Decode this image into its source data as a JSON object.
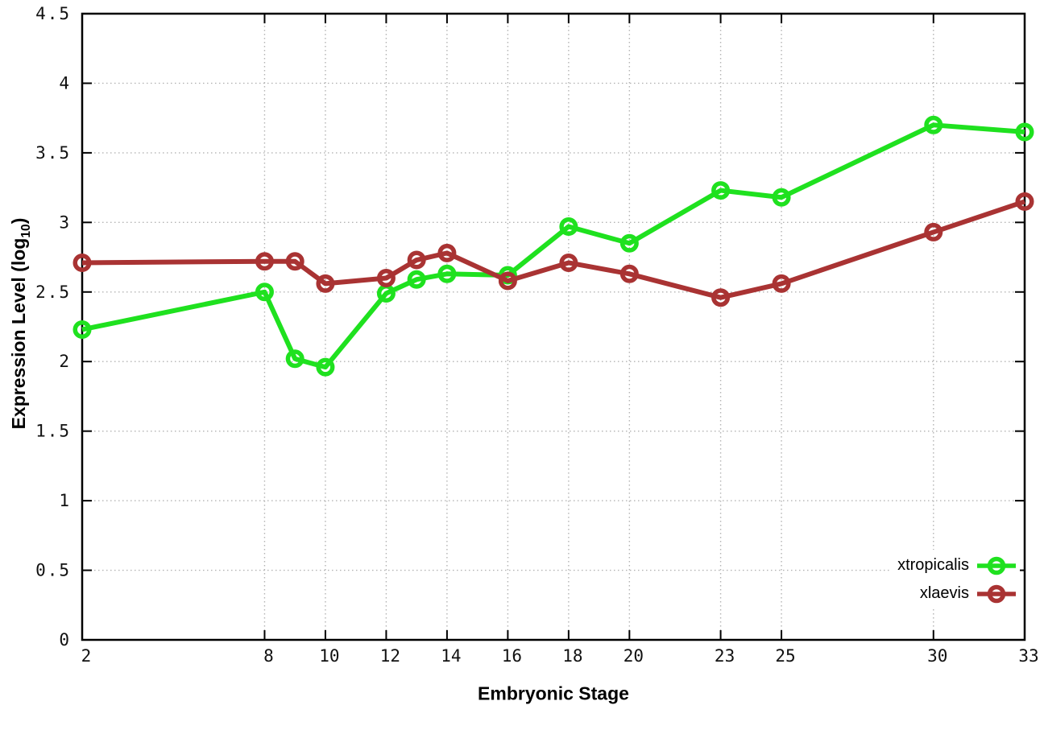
{
  "chart_data": {
    "type": "line",
    "title": "",
    "xlabel": "Embryonic Stage",
    "ylabel": "Expression Level (log10)",
    "ylabel_parts": [
      "Expression Level (log",
      "10",
      ")"
    ],
    "x": [
      2,
      8,
      9,
      10,
      12,
      13,
      14,
      16,
      18,
      20,
      23,
      25,
      30,
      33
    ],
    "series": [
      {
        "name": "xtropicalis",
        "color": "#1fe11f",
        "values": [
          2.23,
          2.5,
          2.02,
          1.96,
          2.49,
          2.59,
          2.63,
          2.62,
          2.97,
          2.85,
          3.23,
          3.18,
          3.7,
          3.65
        ]
      },
      {
        "name": "xlaevis",
        "color": "#a93333",
        "values": [
          2.71,
          2.72,
          2.72,
          2.56,
          2.6,
          2.73,
          2.78,
          2.58,
          2.71,
          2.63,
          2.46,
          2.56,
          2.93,
          3.15
        ]
      }
    ],
    "xlim": [
      2,
      33
    ],
    "ylim": [
      0,
      4.5
    ],
    "x_ticks": [
      2,
      8,
      10,
      12,
      14,
      16,
      18,
      20,
      23,
      25,
      30,
      33
    ],
    "x_tick_labels": [
      "2",
      "8",
      "10",
      "12",
      "14",
      "16",
      "18",
      "20",
      "23",
      "25",
      "30",
      "33"
    ],
    "y_ticks": [
      0,
      0.5,
      1,
      1.5,
      2,
      2.5,
      3,
      3.5,
      4,
      4.5
    ],
    "y_tick_labels": [
      "0",
      "0.5",
      "1",
      "1.5",
      "2",
      "2.5",
      "3",
      "3.5",
      "4",
      "4.5"
    ],
    "grid": true,
    "legend_position": "bottom-right",
    "colors": {
      "border": "#000000",
      "grid": "#b3b3b3",
      "tick_text": "#111111"
    }
  }
}
